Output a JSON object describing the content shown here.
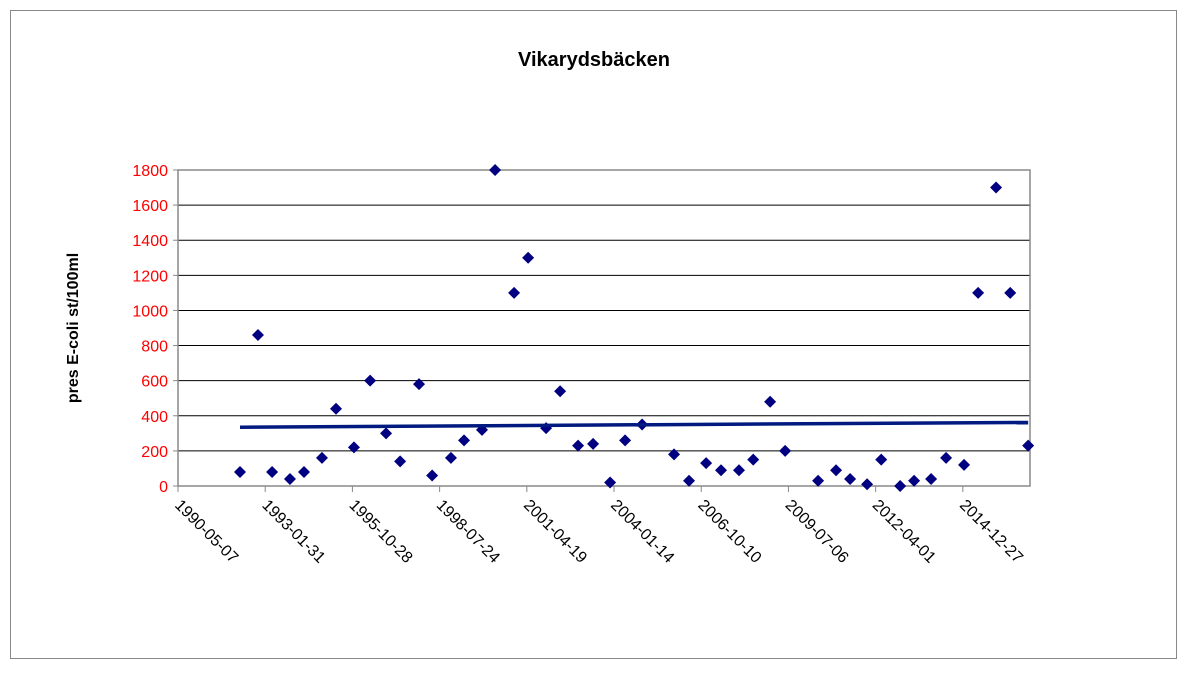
{
  "chart_data": {
    "type": "scatter",
    "title": "Vikarydsbäcken",
    "y_label": "pres E-coli st/100ml",
    "x": [
      "1992-04-17",
      "1992-11-09",
      "1993-04-20",
      "1993-11-11",
      "1994-04-21",
      "1994-11-13",
      "1995-04-23",
      "1995-11-15",
      "1996-05-18",
      "1996-11-17",
      "1997-04-27",
      "1997-11-30",
      "1998-04-29",
      "1998-12-01",
      "1999-04-30",
      "1999-11-22",
      "2000-04-20",
      "2000-11-24",
      "2001-05-04",
      "2001-11-26",
      "2002-05-06",
      "2002-11-28",
      "2003-05-19",
      "2003-11-30",
      "2004-05-20",
      "2004-12-01",
      "2005-12-02",
      "2006-05-23",
      "2006-12-05",
      "2007-05-25",
      "2007-12-17",
      "2008-05-28",
      "2008-12-08",
      "2009-05-29",
      "2010-06-11",
      "2011-01-03",
      "2011-06-13",
      "2011-12-25",
      "2012-06-04",
      "2013-01-07",
      "2013-06-16",
      "2013-12-28",
      "2014-06-18",
      "2015-01-10",
      "2015-06-20",
      "2016-01-12",
      "2016-06-22",
      "2017-01-14"
    ],
    "values": [
      80,
      860,
      80,
      40,
      80,
      160,
      440,
      220,
      600,
      300,
      140,
      580,
      60,
      160,
      260,
      320,
      1800,
      1100,
      1300,
      330,
      540,
      230,
      240,
      20,
      260,
      350,
      180,
      30,
      130,
      90,
      90,
      150,
      480,
      200,
      30,
      90,
      40,
      10,
      150,
      0,
      30,
      40,
      160,
      120,
      1100,
      1700,
      1100,
      230
    ],
    "color": "#000080",
    "trendline": {
      "x": [
        "1992-04-17",
        "2017-01-14"
      ],
      "values": [
        335,
        362
      ],
      "color": "#001a80"
    },
    "xlim": [
      "1990-05-07",
      "2017-02-04"
    ],
    "xticks": [
      "1990-05-07",
      "1993-01-31",
      "1995-10-28",
      "1998-07-24",
      "2001-04-19",
      "2004-01-14",
      "2006-10-10",
      "2009-07-06",
      "2012-04-01",
      "2014-12-27"
    ],
    "ylim": [
      0,
      1800
    ],
    "yticks": [
      0,
      200,
      400,
      600,
      800,
      1000,
      1200,
      1400,
      1600,
      1800
    ],
    "grid": true,
    "tick_color": "#ff0000"
  }
}
